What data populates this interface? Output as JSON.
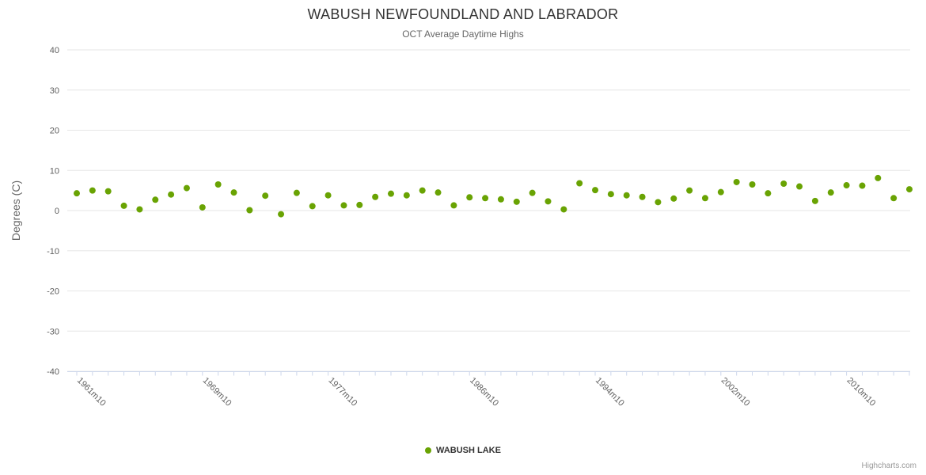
{
  "header": {
    "title": "WABUSH NEWFOUNDLAND AND LABRADOR",
    "subtitle": "OCT Average Daytime Highs"
  },
  "legend": {
    "series_label": "WABUSH LAKE"
  },
  "credit": {
    "label": "Highcharts.com"
  },
  "colors": {
    "point": "#69a303",
    "gridline": "#e6e6e6",
    "axis_line": "#ccd6eb",
    "axis_label": "#606060",
    "ylabel": "#666666"
  },
  "chart_data": {
    "type": "scatter",
    "title": "WABUSH NEWFOUNDLAND AND LABRADOR",
    "subtitle": "OCT Average Daytime Highs",
    "xlabel": "",
    "ylabel": "Degrees (C)",
    "ylim": [
      -40,
      40
    ],
    "y_tick_interval": 10,
    "grid": true,
    "legend_position": "bottom",
    "x_tick_labels": [
      "1961m10",
      "1969m10",
      "1977m10",
      "1986m10",
      "1994m10",
      "2002m10",
      "2010m10"
    ],
    "x_tick_label_years": [
      1961,
      1969,
      1977,
      1986,
      1994,
      2002,
      2010
    ],
    "series": [
      {
        "name": "WABUSH LAKE",
        "color": "#69a303",
        "years": [
          1961,
          1962,
          1963,
          1964,
          1965,
          1966,
          1967,
          1968,
          1969,
          1970,
          1971,
          1972,
          1973,
          1974,
          1975,
          1976,
          1977,
          1978,
          1979,
          1980,
          1981,
          1982,
          1983,
          1984,
          1985,
          1986,
          1987,
          1988,
          1989,
          1990,
          1991,
          1992,
          1993,
          1994,
          1995,
          1996,
          1997,
          1998,
          1999,
          2000,
          2001,
          2002,
          2003,
          2004,
          2005,
          2006,
          2007,
          2008,
          2009,
          2010,
          2011,
          2012,
          2013,
          2014
        ],
        "values": [
          4.3,
          5.0,
          4.8,
          1.2,
          0.3,
          2.7,
          4.0,
          5.6,
          0.8,
          6.5,
          4.5,
          0.1,
          3.7,
          -0.9,
          4.4,
          1.1,
          3.8,
          1.3,
          1.4,
          3.4,
          4.2,
          3.8,
          5.0,
          4.5,
          1.3,
          3.3,
          3.1,
          2.8,
          2.2,
          4.4,
          2.3,
          0.3,
          6.8,
          5.1,
          4.1,
          3.8,
          3.4,
          2.1,
          3.0,
          5.0,
          3.1,
          4.6,
          7.1,
          6.5,
          4.3,
          6.7,
          6.0,
          2.4,
          4.5,
          6.3,
          6.2,
          8.1,
          3.1,
          5.3
        ]
      }
    ]
  }
}
